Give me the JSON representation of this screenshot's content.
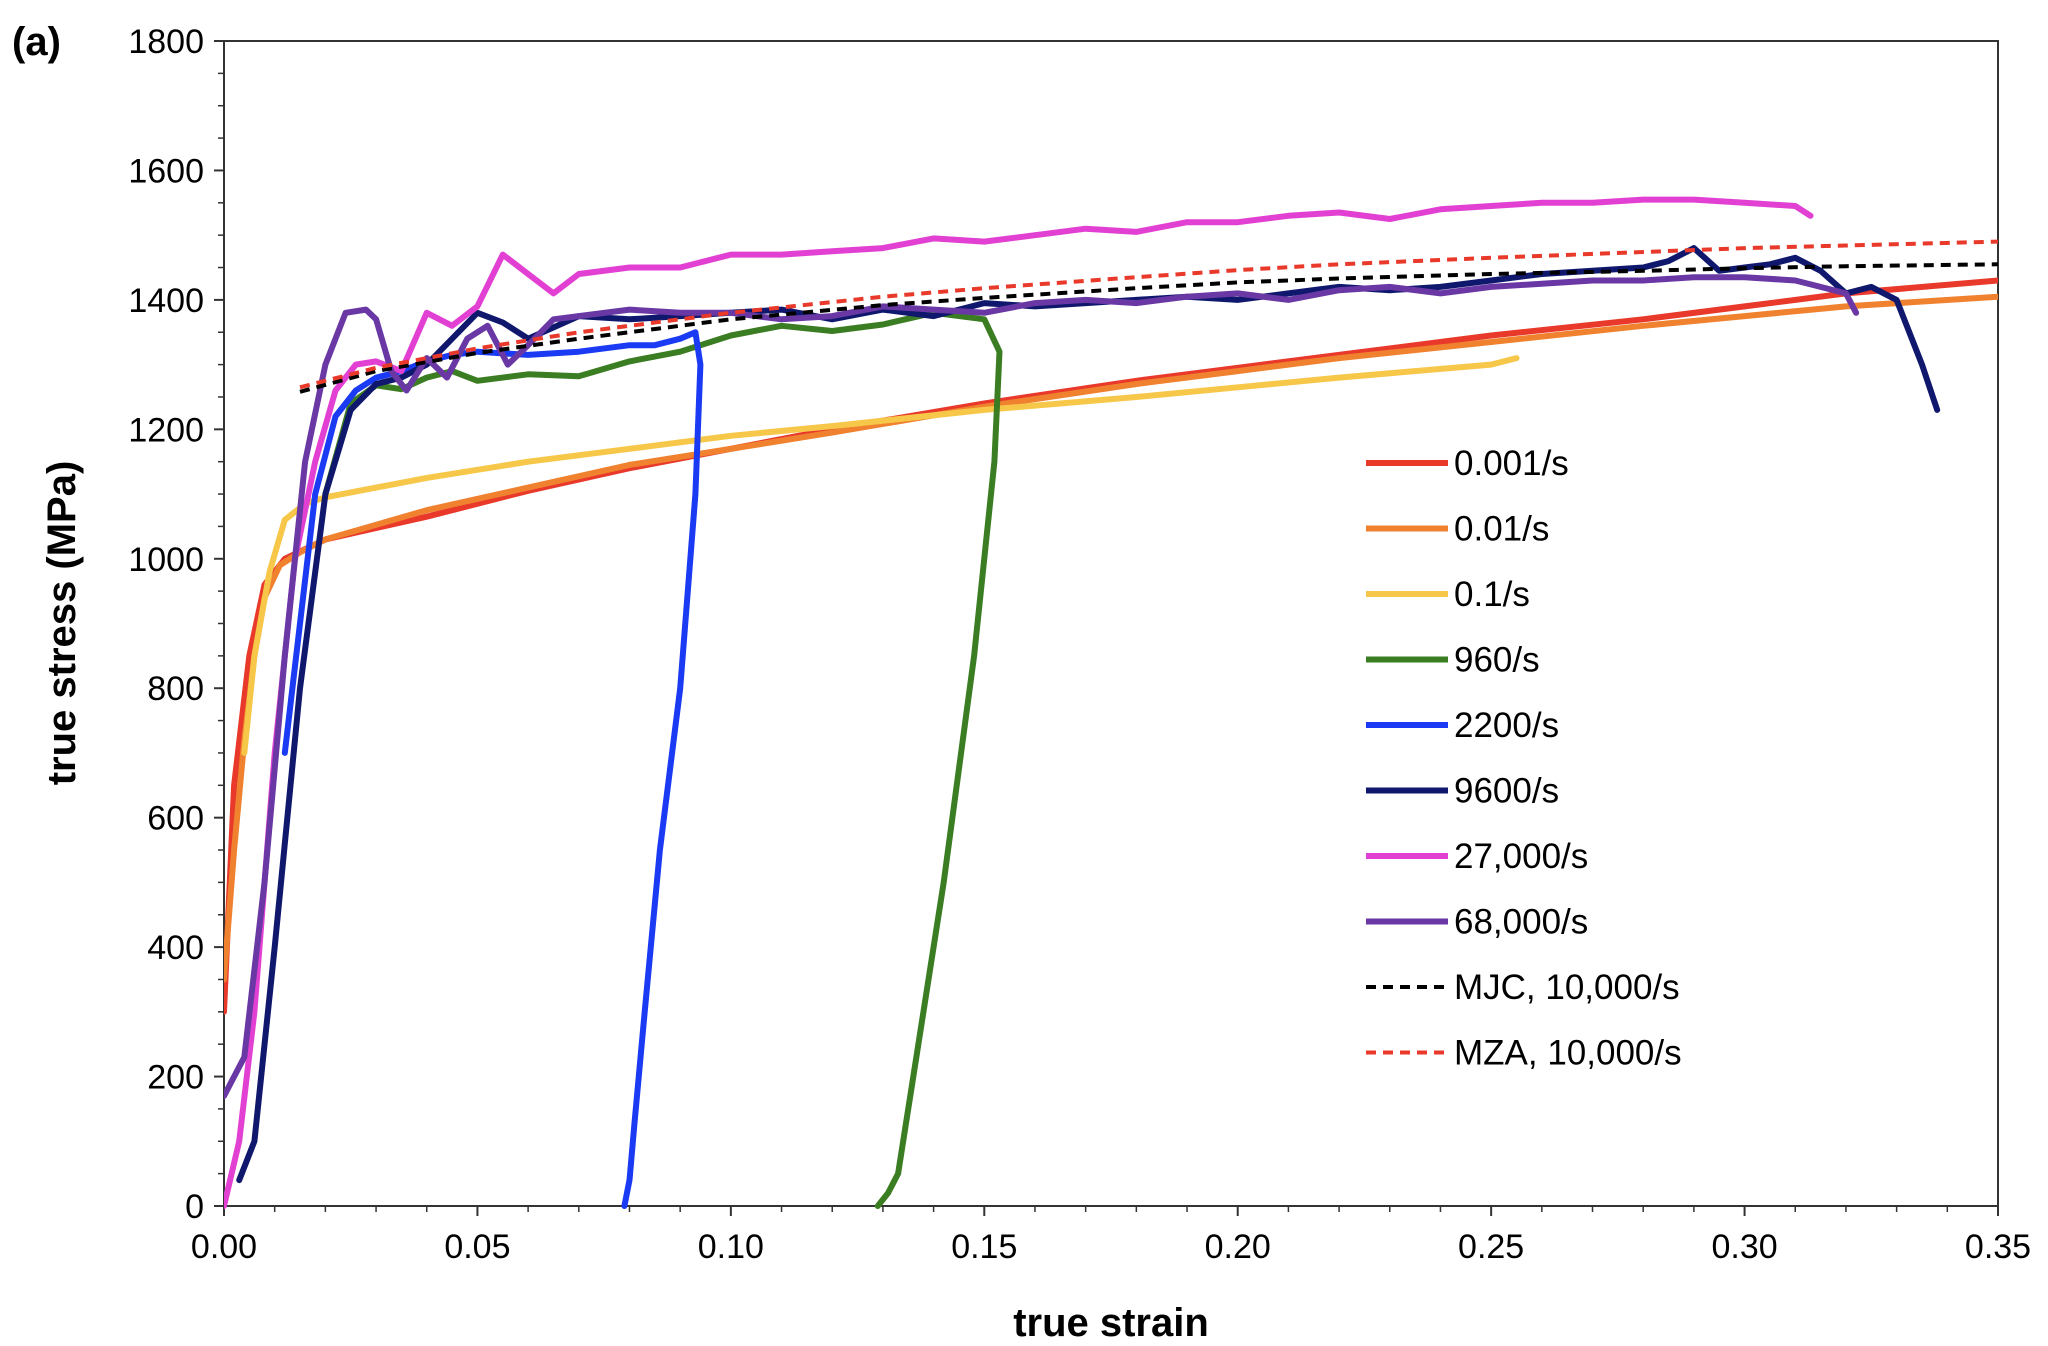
{
  "chart_data": {
    "type": "line",
    "panel_label": "(a)",
    "xlabel": "true strain",
    "ylabel": "true stress (MPa)",
    "xlim": [
      0,
      0.35
    ],
    "ylim": [
      0,
      1800
    ],
    "xticks": [
      0,
      0.05,
      0.1,
      0.15,
      0.2,
      0.25,
      0.3,
      0.35
    ],
    "xtick_labels": [
      "0.00",
      "0.05",
      "0.10",
      "0.15",
      "0.20",
      "0.25",
      "0.30",
      "0.35"
    ],
    "yticks": [
      0,
      200,
      400,
      600,
      800,
      1000,
      1200,
      1400,
      1600,
      1800
    ],
    "ytick_labels": [
      "0",
      "200",
      "400",
      "600",
      "800",
      "1000",
      "1200",
      "1400",
      "1600",
      "1800"
    ],
    "grid": false,
    "legend_position": "right",
    "series": [
      {
        "name": "0.001/s",
        "color": "#e8392a",
        "dashed": false,
        "x": [
          0,
          0.002,
          0.005,
          0.008,
          0.012,
          0.02,
          0.04,
          0.06,
          0.08,
          0.1,
          0.12,
          0.15,
          0.18,
          0.2,
          0.22,
          0.25,
          0.28,
          0.3,
          0.32,
          0.35
        ],
        "y": [
          300,
          650,
          850,
          960,
          1000,
          1030,
          1065,
          1105,
          1140,
          1170,
          1200,
          1240,
          1275,
          1295,
          1315,
          1345,
          1370,
          1390,
          1410,
          1430
        ]
      },
      {
        "name": "0.01/s",
        "color": "#f0812e",
        "dashed": false,
        "x": [
          0,
          0.002,
          0.004,
          0.006,
          0.008,
          0.011,
          0.015,
          0.02,
          0.04,
          0.06,
          0.08,
          0.1,
          0.12,
          0.15,
          0.18,
          0.2,
          0.22,
          0.25,
          0.28,
          0.3,
          0.32,
          0.35
        ],
        "y": [
          350,
          550,
          720,
          850,
          940,
          990,
          1010,
          1030,
          1075,
          1110,
          1145,
          1170,
          1195,
          1235,
          1270,
          1290,
          1310,
          1335,
          1360,
          1375,
          1390,
          1405
        ]
      },
      {
        "name": "0.1/s",
        "color": "#f6c748",
        "dashed": false,
        "x": [
          0.004,
          0.006,
          0.009,
          0.012,
          0.016,
          0.02,
          0.04,
          0.06,
          0.08,
          0.1,
          0.12,
          0.15,
          0.18,
          0.2,
          0.22,
          0.25,
          0.255
        ],
        "y": [
          700,
          850,
          980,
          1060,
          1085,
          1095,
          1125,
          1150,
          1170,
          1190,
          1205,
          1230,
          1250,
          1265,
          1280,
          1300,
          1310
        ]
      },
      {
        "name": "960/s",
        "color": "#3b7d22",
        "dashed": false,
        "x": [
          0.02,
          0.025,
          0.03,
          0.035,
          0.04,
          0.045,
          0.05,
          0.06,
          0.07,
          0.08,
          0.09,
          0.1,
          0.11,
          0.12,
          0.13,
          0.14,
          0.15,
          0.153,
          0.152,
          0.148,
          0.142,
          0.136,
          0.133,
          0.131,
          0.129
        ],
        "y": [
          1100,
          1240,
          1268,
          1262,
          1280,
          1290,
          1275,
          1285,
          1282,
          1305,
          1320,
          1345,
          1360,
          1352,
          1362,
          1380,
          1370,
          1320,
          1150,
          850,
          500,
          200,
          50,
          20,
          0
        ]
      },
      {
        "name": "2200/s",
        "color": "#1a3af3",
        "dashed": false,
        "x": [
          0.012,
          0.018,
          0.022,
          0.026,
          0.03,
          0.035,
          0.04,
          0.045,
          0.05,
          0.06,
          0.07,
          0.08,
          0.085,
          0.09,
          0.093,
          0.094,
          0.093,
          0.09,
          0.086,
          0.083,
          0.081,
          0.08,
          0.079
        ],
        "y": [
          700,
          1100,
          1220,
          1260,
          1280,
          1290,
          1305,
          1315,
          1320,
          1315,
          1320,
          1330,
          1330,
          1340,
          1350,
          1300,
          1100,
          800,
          550,
          300,
          130,
          40,
          0
        ]
      },
      {
        "name": "9600/s",
        "color": "#10186e",
        "dashed": false,
        "x": [
          0.003,
          0.006,
          0.01,
          0.015,
          0.02,
          0.025,
          0.03,
          0.035,
          0.04,
          0.045,
          0.05,
          0.055,
          0.06,
          0.07,
          0.08,
          0.09,
          0.1,
          0.11,
          0.12,
          0.13,
          0.14,
          0.15,
          0.16,
          0.17,
          0.18,
          0.19,
          0.2,
          0.21,
          0.22,
          0.23,
          0.24,
          0.25,
          0.26,
          0.27,
          0.28,
          0.285,
          0.29,
          0.295,
          0.3,
          0.305,
          0.31,
          0.315,
          0.32,
          0.325,
          0.33,
          0.335,
          0.338
        ],
        "y": [
          40,
          100,
          400,
          800,
          1100,
          1230,
          1270,
          1280,
          1300,
          1340,
          1380,
          1365,
          1340,
          1375,
          1370,
          1375,
          1380,
          1385,
          1370,
          1385,
          1375,
          1395,
          1390,
          1395,
          1400,
          1405,
          1400,
          1410,
          1420,
          1415,
          1420,
          1430,
          1440,
          1445,
          1450,
          1460,
          1480,
          1445,
          1450,
          1455,
          1465,
          1445,
          1410,
          1420,
          1400,
          1300,
          1230
        ]
      },
      {
        "name": "27,000/s",
        "color": "#e240d3",
        "dashed": false,
        "x": [
          0,
          0.003,
          0.006,
          0.01,
          0.014,
          0.018,
          0.022,
          0.026,
          0.03,
          0.035,
          0.04,
          0.045,
          0.05,
          0.055,
          0.06,
          0.065,
          0.07,
          0.08,
          0.09,
          0.1,
          0.11,
          0.12,
          0.13,
          0.14,
          0.15,
          0.16,
          0.17,
          0.18,
          0.19,
          0.2,
          0.21,
          0.22,
          0.23,
          0.24,
          0.25,
          0.26,
          0.27,
          0.28,
          0.29,
          0.3,
          0.31,
          0.313
        ],
        "y": [
          0,
          100,
          300,
          700,
          1000,
          1150,
          1260,
          1300,
          1305,
          1290,
          1380,
          1360,
          1390,
          1470,
          1440,
          1410,
          1440,
          1450,
          1450,
          1470,
          1470,
          1475,
          1480,
          1495,
          1490,
          1500,
          1510,
          1505,
          1520,
          1520,
          1530,
          1535,
          1525,
          1540,
          1545,
          1550,
          1550,
          1555,
          1555,
          1550,
          1545,
          1530
        ]
      },
      {
        "name": "68,000/s",
        "color": "#6938a4",
        "dashed": false,
        "x": [
          0,
          0.004,
          0.008,
          0.012,
          0.016,
          0.02,
          0.024,
          0.028,
          0.03,
          0.033,
          0.036,
          0.04,
          0.044,
          0.048,
          0.052,
          0.056,
          0.06,
          0.065,
          0.07,
          0.08,
          0.09,
          0.1,
          0.11,
          0.12,
          0.13,
          0.14,
          0.15,
          0.16,
          0.17,
          0.18,
          0.19,
          0.2,
          0.21,
          0.22,
          0.23,
          0.24,
          0.25,
          0.26,
          0.27,
          0.28,
          0.29,
          0.3,
          0.31,
          0.315,
          0.32,
          0.322
        ],
        "y": [
          170,
          230,
          500,
          850,
          1150,
          1300,
          1380,
          1385,
          1370,
          1290,
          1260,
          1310,
          1280,
          1340,
          1360,
          1300,
          1330,
          1370,
          1375,
          1385,
          1380,
          1380,
          1370,
          1375,
          1390,
          1385,
          1380,
          1395,
          1400,
          1395,
          1405,
          1410,
          1400,
          1415,
          1420,
          1410,
          1420,
          1425,
          1430,
          1430,
          1435,
          1435,
          1430,
          1420,
          1410,
          1380
        ]
      },
      {
        "name": "MJC, 10,000/s",
        "color": "#000000",
        "dashed": true,
        "x": [
          0.015,
          0.03,
          0.05,
          0.07,
          0.1,
          0.13,
          0.15,
          0.18,
          0.2,
          0.22,
          0.25,
          0.28,
          0.3,
          0.32,
          0.35
        ],
        "y": [
          1258,
          1290,
          1318,
          1340,
          1370,
          1392,
          1403,
          1418,
          1427,
          1433,
          1440,
          1445,
          1449,
          1452,
          1455
        ]
      },
      {
        "name": "MZA, 10,000/s",
        "color": "#e8392a",
        "dashed": true,
        "x": [
          0.015,
          0.03,
          0.05,
          0.07,
          0.1,
          0.13,
          0.15,
          0.18,
          0.2,
          0.22,
          0.25,
          0.28,
          0.3,
          0.32,
          0.35
        ],
        "y": [
          1265,
          1295,
          1325,
          1350,
          1380,
          1405,
          1418,
          1435,
          1446,
          1455,
          1465,
          1474,
          1480,
          1484,
          1490
        ]
      }
    ]
  }
}
